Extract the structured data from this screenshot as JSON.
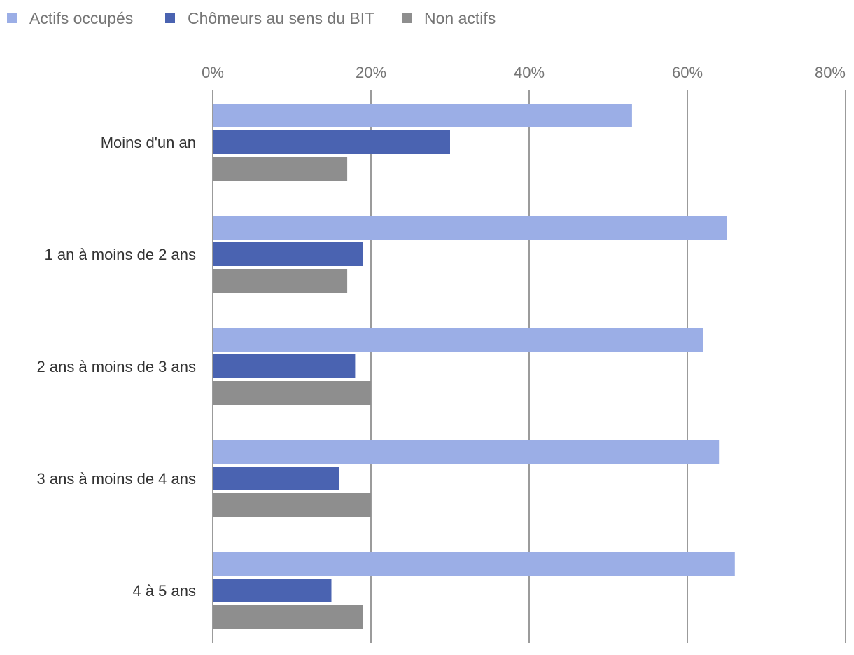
{
  "colors": {
    "actifs": "#9baee6",
    "chomeurs": "#4a63b1",
    "non_actifs": "#8e8e8e",
    "gridline": "#7a7a7a",
    "background": "#ffffff"
  },
  "chart_data": {
    "type": "bar",
    "orientation": "horizontal",
    "title": "",
    "xlabel": "",
    "ylabel": "",
    "xlim": [
      0,
      80
    ],
    "x_ticks": [
      "0%",
      "20%",
      "40%",
      "60%",
      "80%"
    ],
    "x_tick_values": [
      0,
      20,
      40,
      60,
      80
    ],
    "grid": true,
    "legend_position": "top-left",
    "categories": [
      "Moins d'un an",
      "1 an à moins de 2 ans",
      "2 ans à moins de 3 ans",
      "3 ans à moins de 4 ans",
      "4 à 5 ans"
    ],
    "series": [
      {
        "name": "Actifs occupés",
        "color": "#9baee6",
        "values": [
          53,
          65,
          62,
          64,
          66
        ]
      },
      {
        "name": "Chômeurs au sens du BIT",
        "color": "#4a63b1",
        "values": [
          30,
          19,
          18,
          16,
          15
        ]
      },
      {
        "name": "Non actifs",
        "color": "#8e8e8e",
        "values": [
          17,
          17,
          20,
          20,
          19
        ]
      }
    ]
  }
}
